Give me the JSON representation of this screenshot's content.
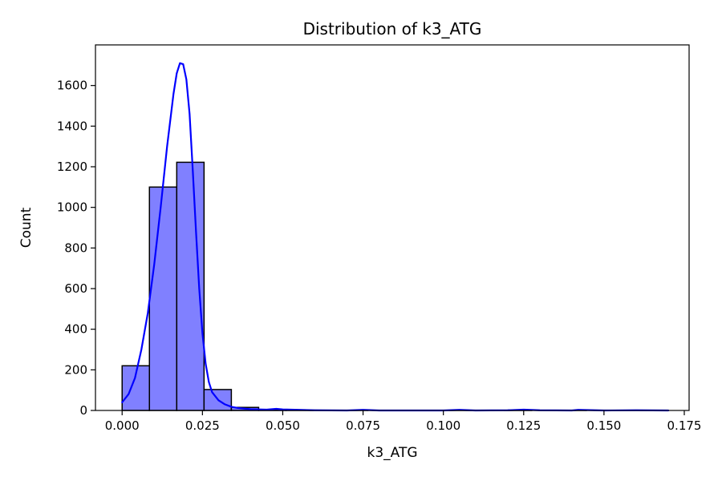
{
  "chart_data": {
    "type": "histogram",
    "title": "Distribution of k3_ATG",
    "xlabel": "k3_ATG",
    "ylabel": "Count",
    "xlim": [
      -0.0083,
      0.1765
    ],
    "ylim": [
      0,
      1800
    ],
    "xticks": [
      0.0,
      0.025,
      0.05,
      0.075,
      0.1,
      0.125,
      0.15,
      0.175
    ],
    "xtick_labels": [
      "0.000",
      "0.025",
      "0.050",
      "0.075",
      "0.100",
      "0.125",
      "0.150",
      "0.175"
    ],
    "yticks": [
      0,
      200,
      400,
      600,
      800,
      1000,
      1200,
      1400,
      1600
    ],
    "ytick_labels": [
      "0",
      "200",
      "400",
      "600",
      "800",
      "1000",
      "1200",
      "1400",
      "1600"
    ],
    "bins": [
      {
        "x0": 0.0,
        "x1": 0.0085,
        "count": 220
      },
      {
        "x0": 0.0085,
        "x1": 0.017,
        "count": 1100
      },
      {
        "x0": 0.017,
        "x1": 0.0255,
        "count": 1222
      },
      {
        "x0": 0.0255,
        "x1": 0.034,
        "count": 103
      },
      {
        "x0": 0.034,
        "x1": 0.0425,
        "count": 15
      },
      {
        "x0": 0.0425,
        "x1": 0.051,
        "count": 3
      },
      {
        "x0": 0.051,
        "x1": 0.0595,
        "count": 1
      },
      {
        "x0": 0.0595,
        "x1": 0.068,
        "count": 0
      },
      {
        "x0": 0.068,
        "x1": 0.0765,
        "count": 1
      },
      {
        "x0": 0.0765,
        "x1": 0.085,
        "count": 0
      },
      {
        "x0": 0.085,
        "x1": 0.0935,
        "count": 0
      },
      {
        "x0": 0.0935,
        "x1": 0.102,
        "count": 0
      },
      {
        "x0": 0.102,
        "x1": 0.1105,
        "count": 1
      },
      {
        "x0": 0.1105,
        "x1": 0.119,
        "count": 0
      },
      {
        "x0": 0.119,
        "x1": 0.1275,
        "count": 1
      },
      {
        "x0": 0.1275,
        "x1": 0.136,
        "count": 0
      },
      {
        "x0": 0.136,
        "x1": 0.1445,
        "count": 1
      },
      {
        "x0": 0.1445,
        "x1": 0.153,
        "count": 0
      },
      {
        "x0": 0.153,
        "x1": 0.1615,
        "count": 0
      },
      {
        "x0": 0.1615,
        "x1": 0.17,
        "count": 1
      }
    ],
    "kde": {
      "x": [
        0.0,
        0.002,
        0.004,
        0.006,
        0.008,
        0.01,
        0.012,
        0.014,
        0.016,
        0.017,
        0.018,
        0.019,
        0.02,
        0.021,
        0.022,
        0.023,
        0.024,
        0.025,
        0.026,
        0.027,
        0.028,
        0.03,
        0.032,
        0.034,
        0.036,
        0.04,
        0.045,
        0.048,
        0.05,
        0.055,
        0.06,
        0.07,
        0.075,
        0.08,
        0.09,
        0.1,
        0.105,
        0.11,
        0.12,
        0.125,
        0.13,
        0.14,
        0.142,
        0.15,
        0.16,
        0.17
      ],
      "y": [
        40,
        80,
        160,
        300,
        480,
        720,
        1000,
        1300,
        1560,
        1660,
        1710,
        1705,
        1630,
        1460,
        1180,
        880,
        600,
        380,
        230,
        140,
        90,
        50,
        30,
        18,
        12,
        6,
        4,
        8,
        5,
        3,
        1,
        0,
        3,
        0,
        0,
        0,
        3,
        0,
        1,
        4,
        1,
        0,
        3,
        0,
        1,
        0
      ]
    },
    "colors": {
      "bar_fill": "#8080ff",
      "bar_edge": "#000000",
      "kde_line": "#0000ff",
      "axes": "#000000",
      "background": "#ffffff"
    },
    "grid": false
  }
}
